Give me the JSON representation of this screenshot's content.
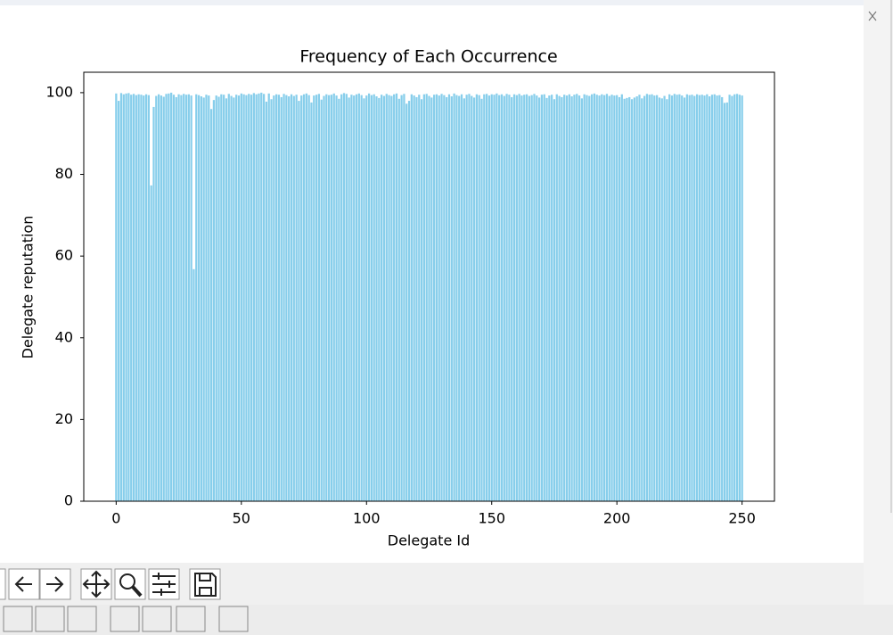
{
  "chart_data": {
    "type": "bar",
    "title": "Frequency of Each Occurrence",
    "xlabel": "Delegate Id",
    "ylabel": "Delegate reputation",
    "color": "#87ceeb",
    "bar_width": 0.8,
    "xlim": [
      -12.94,
      262.94
    ],
    "xticks": [
      0,
      50,
      100,
      150,
      200,
      250
    ],
    "ylim": [
      0,
      105
    ],
    "yticks": [
      0,
      20,
      40,
      60,
      80,
      100
    ],
    "values": [
      99.8,
      98.0,
      99.9,
      99.6,
      99.8,
      99.9,
      99.5,
      99.7,
      99.4,
      99.6,
      99.5,
      99.3,
      99.6,
      99.4,
      77.3,
      96.5,
      99.2,
      99.6,
      99.3,
      99.0,
      99.7,
      99.8,
      100.0,
      99.5,
      98.9,
      99.6,
      99.4,
      99.7,
      99.5,
      99.6,
      99.3,
      56.8,
      99.6,
      99.4,
      99.1,
      98.8,
      99.5,
      99.3,
      96.0,
      98.2,
      99.3,
      99.0,
      99.6,
      99.5,
      98.6,
      99.7,
      99.2,
      98.8,
      99.5,
      99.3,
      99.8,
      99.6,
      99.4,
      99.7,
      99.5,
      99.9,
      99.6,
      99.8,
      100.0,
      99.7,
      97.8,
      99.8,
      98.4,
      99.3,
      99.6,
      99.5,
      98.9,
      99.7,
      99.4,
      99.1,
      99.6,
      99.2,
      99.5,
      98.0,
      99.3,
      99.6,
      99.8,
      99.4,
      97.6,
      99.3,
      99.5,
      99.7,
      98.3,
      99.2,
      99.6,
      99.4,
      99.5,
      99.8,
      99.3,
      98.5,
      99.6,
      99.9,
      99.7,
      98.8,
      99.5,
      99.3,
      99.6,
      99.8,
      99.4,
      98.6,
      99.3,
      99.8,
      99.4,
      99.6,
      99.1,
      98.7,
      99.5,
      99.2,
      99.7,
      99.4,
      99.2,
      99.6,
      99.8,
      98.5,
      99.4,
      99.7,
      97.3,
      98.0,
      99.6,
      99.3,
      98.9,
      99.5,
      98.4,
      99.6,
      99.7,
      99.2,
      98.8,
      99.5,
      99.6,
      99.3,
      99.7,
      99.4,
      98.9,
      99.6,
      99.1,
      99.8,
      99.4,
      99.2,
      99.6,
      98.6,
      99.5,
      99.7,
      99.2,
      98.8,
      99.6,
      99.4,
      98.5,
      99.6,
      99.7,
      99.3,
      99.6,
      99.5,
      99.8,
      99.4,
      99.6,
      99.2,
      99.7,
      99.5,
      98.9,
      99.6,
      99.4,
      99.7,
      99.3,
      99.5,
      99.6,
      99.2,
      99.4,
      99.7,
      99.3,
      98.8,
      99.5,
      99.6,
      98.7,
      99.3,
      99.5,
      98.4,
      99.6,
      99.2,
      98.9,
      99.5,
      99.3,
      99.6,
      99.1,
      99.5,
      99.7,
      99.3,
      98.6,
      99.6,
      99.4,
      99.2,
      99.6,
      99.8,
      99.5,
      99.3,
      99.6,
      99.4,
      99.7,
      99.2,
      99.5,
      99.3,
      99.4,
      98.9,
      99.6,
      98.5,
      98.7,
      98.9,
      98.4,
      98.8,
      99.1,
      99.5,
      98.6,
      99.2,
      99.7,
      99.5,
      99.6,
      99.3,
      99.4,
      98.8,
      98.6,
      99.2,
      98.4,
      99.6,
      99.3,
      99.7,
      99.5,
      99.6,
      99.3,
      98.8,
      99.6,
      99.4,
      99.5,
      99.2,
      99.6,
      99.4,
      99.5,
      99.3,
      99.6,
      99.1,
      99.5,
      99.6,
      99.3,
      99.4,
      98.9,
      97.5,
      97.6,
      99.5,
      99.2,
      99.6,
      99.7,
      99.5,
      99.3
    ]
  }
}
